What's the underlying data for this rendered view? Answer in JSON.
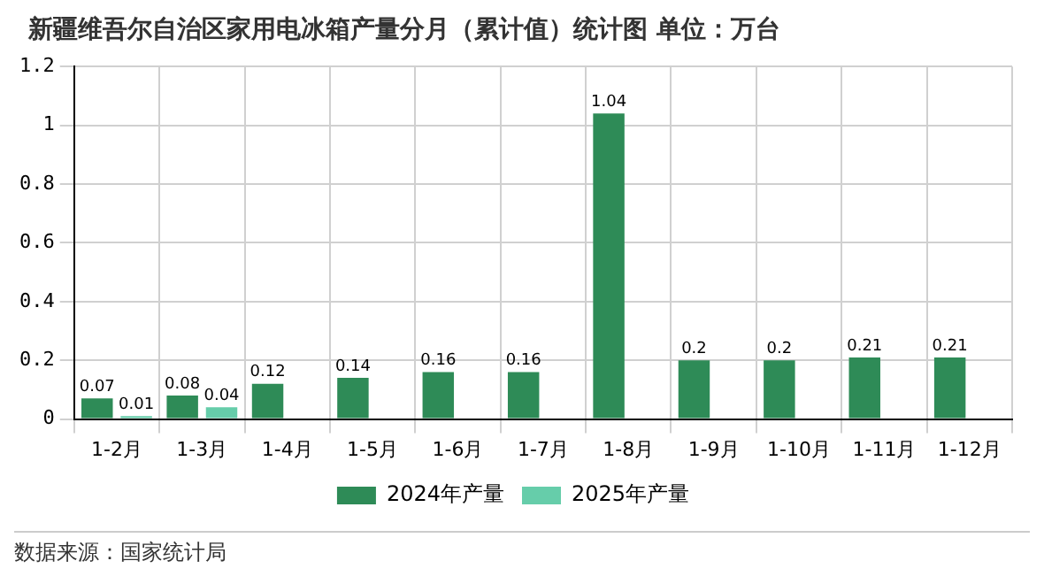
{
  "chart_data": {
    "type": "bar",
    "title": "新疆维吾尔自治区家用电冰箱产量分月（累计值）统计图 单位：万台",
    "categories": [
      "1-2月",
      "1-3月",
      "1-4月",
      "1-5月",
      "1-6月",
      "1-7月",
      "1-8月",
      "1-9月",
      "1-10月",
      "1-11月",
      "1-12月"
    ],
    "series": [
      {
        "name": "2024年产量",
        "color": "#2e8b57",
        "values": [
          0.07,
          0.08,
          0.12,
          0.14,
          0.16,
          0.16,
          1.04,
          0.2,
          0.2,
          0.21,
          0.21
        ]
      },
      {
        "name": "2025年产量",
        "color": "#66cdaa",
        "values": [
          0.01,
          0.04,
          null,
          null,
          null,
          null,
          null,
          null,
          null,
          null,
          null
        ]
      }
    ],
    "ylim": [
      0,
      1.2
    ],
    "yticks": [
      0,
      0.2,
      0.4,
      0.6,
      0.8,
      1,
      1.2
    ],
    "grid": true,
    "legend": "bottom",
    "data_labels": true,
    "annotations": [
      "数据来源：国家统计局"
    ]
  }
}
